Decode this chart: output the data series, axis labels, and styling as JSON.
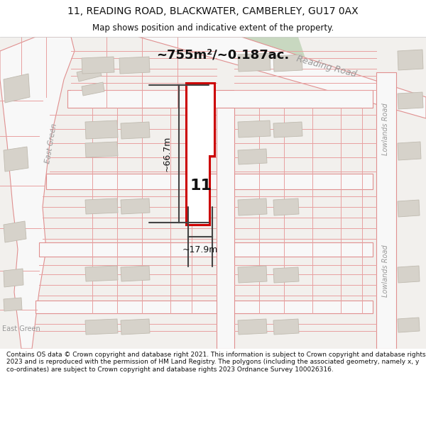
{
  "title_line1": "11, READING ROAD, BLACKWATER, CAMBERLEY, GU17 0AX",
  "title_line2": "Map shows position and indicative extent of the property.",
  "area_text": "~755m²/~0.187ac.",
  "width_text": "~17.9m",
  "height_text": "~66.7m",
  "number_text": "11",
  "footer_text": "Contains OS data © Crown copyright and database right 2021. This information is subject to Crown copyright and database rights 2023 and is reproduced with the permission of HM Land Registry. The polygons (including the associated geometry, namely x, y co-ordinates) are subject to Crown copyright and database rights 2023 Ordnance Survey 100026316.",
  "map_bg": "#f2f0ed",
  "road_fill": "#ffffff",
  "road_stroke": "#e09090",
  "highlight_stroke": "#cc0000",
  "building_fill": "#d6d2ca",
  "building_stroke": "#c0bbb0",
  "dim_line_color": "#444444",
  "road_label_color": "#999999",
  "boundary_color": "#e8a0a0",
  "text_color": "#111111",
  "title_font": "DejaVu Sans",
  "footer_fontsize": 6.5
}
